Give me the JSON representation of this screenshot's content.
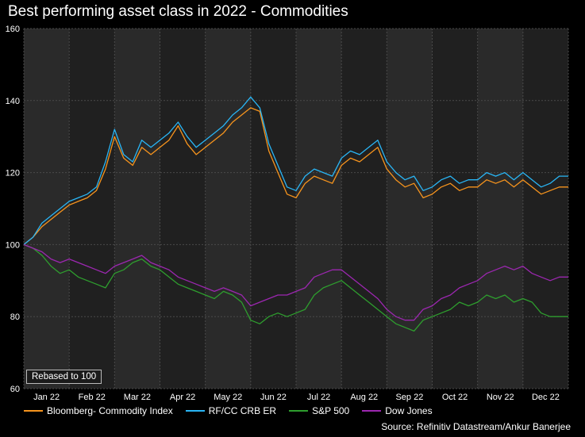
{
  "chart_data": {
    "type": "line",
    "title": "Best performing asset class in 2022 - Commodities",
    "ylim": [
      60,
      160
    ],
    "yticks": [
      60,
      80,
      100,
      120,
      140,
      160
    ],
    "xticks": [
      "Jan 22",
      "Feb 22",
      "Mar 22",
      "Apr 22",
      "May 22",
      "Jun 22",
      "Jul 22",
      "Aug 22",
      "Sep 22",
      "Oct 22",
      "Nov 22",
      "Dec 22"
    ],
    "grid": true,
    "annotation": "Rebased to 100",
    "source": "Source: Refinitiv Datastream/Ankur Banerjee",
    "x": [
      0,
      0.2,
      0.4,
      0.6,
      0.8,
      1.0,
      1.2,
      1.4,
      1.6,
      1.8,
      2.0,
      2.2,
      2.4,
      2.6,
      2.8,
      3.0,
      3.2,
      3.4,
      3.6,
      3.8,
      4.0,
      4.2,
      4.4,
      4.6,
      4.8,
      5.0,
      5.2,
      5.4,
      5.6,
      5.8,
      6.0,
      6.2,
      6.4,
      6.6,
      6.8,
      7.0,
      7.2,
      7.4,
      7.6,
      7.8,
      8.0,
      8.2,
      8.4,
      8.6,
      8.8,
      9.0,
      9.2,
      9.4,
      9.6,
      9.8,
      10.0,
      10.2,
      10.4,
      10.6,
      10.8,
      11.0,
      11.2,
      11.4,
      11.6,
      11.8,
      12.0
    ],
    "series": [
      {
        "name": "Bloomberg- Commodity Index",
        "color": "#f7941d",
        "values": [
          100,
          102,
          105,
          107,
          109,
          111,
          112,
          113,
          115,
          121,
          130,
          124,
          122,
          127,
          125,
          127,
          129,
          133,
          128,
          125,
          127,
          129,
          131,
          134,
          136,
          138,
          137,
          126,
          120,
          114,
          113,
          117,
          119,
          118,
          117,
          122,
          124,
          123,
          125,
          127,
          121,
          118,
          116,
          117,
          113,
          114,
          116,
          117,
          115,
          116,
          116,
          118,
          117,
          118,
          116,
          118,
          116,
          114,
          115,
          116,
          116
        ]
      },
      {
        "name": "RF/CC CRB ER",
        "color": "#29b6f6",
        "values": [
          100,
          102,
          106,
          108,
          110,
          112,
          113,
          114,
          116,
          123,
          132,
          125,
          123,
          129,
          127,
          129,
          131,
          134,
          130,
          127,
          129,
          131,
          133,
          136,
          138,
          141,
          138,
          128,
          122,
          116,
          115,
          119,
          121,
          120,
          119,
          124,
          126,
          125,
          127,
          129,
          123,
          120,
          118,
          119,
          115,
          116,
          118,
          119,
          117,
          118,
          118,
          120,
          119,
          120,
          118,
          120,
          118,
          116,
          117,
          119,
          119
        ]
      },
      {
        "name": "S&P 500",
        "color": "#2e9e2e",
        "values": [
          100,
          99,
          97,
          94,
          92,
          93,
          91,
          90,
          89,
          88,
          92,
          93,
          95,
          96,
          94,
          93,
          91,
          89,
          88,
          87,
          86,
          85,
          87,
          86,
          84,
          79,
          78,
          80,
          81,
          80,
          81,
          82,
          86,
          88,
          89,
          90,
          88,
          86,
          84,
          82,
          80,
          78,
          77,
          76,
          79,
          80,
          81,
          82,
          84,
          83,
          84,
          86,
          85,
          86,
          84,
          85,
          84,
          81,
          80,
          80,
          80
        ]
      },
      {
        "name": "Dow Jones",
        "color": "#9c27b0",
        "values": [
          100,
          99,
          98,
          96,
          95,
          96,
          95,
          94,
          93,
          92,
          94,
          95,
          96,
          97,
          95,
          94,
          93,
          91,
          90,
          89,
          88,
          87,
          88,
          87,
          86,
          83,
          84,
          85,
          86,
          86,
          87,
          88,
          91,
          92,
          93,
          93,
          91,
          89,
          87,
          85,
          82,
          80,
          79,
          79,
          82,
          83,
          85,
          86,
          88,
          89,
          90,
          92,
          93,
          94,
          93,
          94,
          92,
          91,
          90,
          91,
          91
        ]
      }
    ]
  }
}
